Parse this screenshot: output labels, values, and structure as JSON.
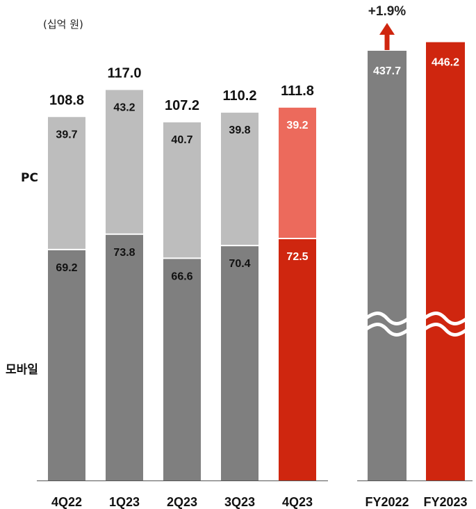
{
  "chart_data": [
    {
      "type": "bar",
      "stacked": true,
      "unit_label": "(십억 원)",
      "categories": [
        "4Q22",
        "1Q23",
        "2Q23",
        "3Q23",
        "4Q23"
      ],
      "series": [
        {
          "name": "모바일",
          "values": [
            69.2,
            73.8,
            66.6,
            70.4,
            72.5
          ]
        },
        {
          "name": "PC",
          "values": [
            39.7,
            43.2,
            40.7,
            39.8,
            39.2
          ]
        }
      ],
      "totals": [
        108.8,
        117.0,
        107.2,
        110.2,
        111.8
      ],
      "total_labels": [
        "108.8",
        "117.0",
        "107.2",
        "110.2",
        "111.8"
      ],
      "pc_labels": [
        "39.7",
        "43.2",
        "40.7",
        "39.8",
        "39.2"
      ],
      "mobile_labels": [
        "69.2",
        "73.8",
        "66.6",
        "70.4",
        "72.5"
      ],
      "highlight_category": "4Q23",
      "colors": {
        "pc": "#bdbdbd",
        "mobile": "#7f7f7f",
        "pc_highlight": "#ec6a5c",
        "mobile_highlight": "#cf260f"
      }
    },
    {
      "type": "bar",
      "axis_break": true,
      "categories": [
        "FY2022",
        "FY2023"
      ],
      "values": [
        437.7,
        446.2
      ],
      "value_labels": [
        "437.7",
        "446.2"
      ],
      "growth_label": "+1.9%",
      "colors": {
        "FY2022": "#7f7f7f",
        "FY2023": "#cf260f"
      }
    }
  ],
  "row_labels": {
    "pc": "PC",
    "mobile": "모바일"
  },
  "colors": {
    "arrow": "#cf260f",
    "axis": "#555555",
    "divider": "#ffffff"
  }
}
